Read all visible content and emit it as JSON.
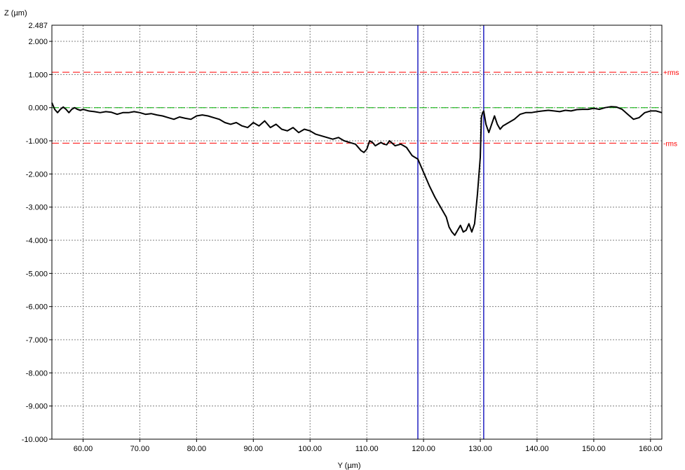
{
  "chart_data": {
    "type": "line",
    "xlabel": "Y (µm)",
    "ylabel": "Z (µm)",
    "xlim": [
      54.5,
      162
    ],
    "ylim": [
      -10.0,
      2.487
    ],
    "y_top_label": "2.487",
    "x_ticks": [
      60,
      70,
      80,
      90,
      100,
      110,
      120,
      130,
      140,
      150,
      160
    ],
    "x_tick_labels": [
      "60.00",
      "70.00",
      "80.00",
      "90.00",
      "100.00",
      "110.00",
      "120.00",
      "130.00",
      "140.00",
      "150.00",
      "160.00"
    ],
    "y_ticks": [
      2,
      1,
      0,
      -1,
      -2,
      -3,
      -4,
      -5,
      -6,
      -7,
      -8,
      -9,
      -10
    ],
    "y_tick_labels": [
      "2.000",
      "1.000",
      "0.000",
      "-1.000",
      "-2.000",
      "-3.000",
      "-4.000",
      "-5.000",
      "-6.000",
      "-7.000",
      "-8.000",
      "-9.000",
      "-10.000"
    ],
    "grid": true,
    "reference_lines": [
      {
        "label": "+rms",
        "y": 1.07,
        "color": "#ff0000"
      },
      {
        "label": "",
        "y": 0.0,
        "color": "#00b000"
      },
      {
        "label": "-rms",
        "y": -1.07,
        "color": "#ff0000"
      }
    ],
    "cursors": [
      {
        "x": 119.0,
        "color": "#2020c0"
      },
      {
        "x": 130.6,
        "color": "#2020c0"
      }
    ],
    "series": [
      {
        "color": "#000000",
        "x": [
          54.5,
          55.0,
          55.5,
          56.0,
          56.5,
          57.0,
          57.5,
          58.0,
          58.5,
          59.0,
          59.5,
          60.0,
          61.0,
          62.0,
          63.0,
          64.0,
          65.0,
          66.0,
          67.0,
          68.0,
          69.0,
          70.0,
          71.0,
          72.0,
          73.0,
          74.0,
          75.0,
          76.0,
          77.0,
          78.0,
          79.0,
          80.0,
          81.0,
          82.0,
          83.0,
          84.0,
          85.0,
          86.0,
          87.0,
          88.0,
          89.0,
          90.0,
          91.0,
          92.0,
          93.0,
          94.0,
          95.0,
          96.0,
          97.0,
          98.0,
          99.0,
          100.0,
          101.0,
          102.0,
          103.0,
          104.0,
          105.0,
          106.0,
          107.0,
          108.0,
          109.0,
          109.5,
          110.0,
          110.5,
          111.0,
          111.5,
          112.0,
          112.5,
          113.0,
          113.5,
          114.0,
          115.0,
          116.0,
          117.0,
          118.0,
          118.5,
          119.0,
          119.5,
          120.0,
          121.0,
          122.0,
          123.0,
          124.0,
          124.5,
          125.0,
          125.5,
          126.0,
          126.5,
          127.0,
          127.5,
          128.0,
          128.5,
          129.0,
          129.5,
          130.0,
          130.2,
          130.4,
          130.6,
          131.0,
          131.5,
          132.0,
          132.5,
          133.0,
          133.5,
          134.0,
          135.0,
          136.0,
          137.0,
          138.0,
          139.0,
          140.0,
          141.0,
          142.0,
          143.0,
          144.0,
          145.0,
          146.0,
          147.0,
          148.0,
          149.0,
          150.0,
          151.0,
          152.0,
          153.0,
          154.0,
          155.0,
          156.0,
          157.0,
          158.0,
          159.0,
          160.0,
          161.0,
          162.0
        ],
        "y": [
          0.15,
          -0.05,
          -0.15,
          -0.05,
          0.02,
          -0.05,
          -0.15,
          -0.05,
          0.0,
          -0.05,
          -0.08,
          -0.05,
          -0.1,
          -0.12,
          -0.15,
          -0.12,
          -0.14,
          -0.2,
          -0.15,
          -0.15,
          -0.12,
          -0.15,
          -0.2,
          -0.18,
          -0.22,
          -0.25,
          -0.3,
          -0.35,
          -0.28,
          -0.32,
          -0.35,
          -0.25,
          -0.22,
          -0.25,
          -0.3,
          -0.35,
          -0.45,
          -0.5,
          -0.45,
          -0.55,
          -0.6,
          -0.45,
          -0.55,
          -0.4,
          -0.6,
          -0.5,
          -0.65,
          -0.7,
          -0.6,
          -0.75,
          -0.65,
          -0.7,
          -0.8,
          -0.85,
          -0.9,
          -0.95,
          -0.9,
          -1.0,
          -1.05,
          -1.1,
          -1.3,
          -1.35,
          -1.25,
          -1.0,
          -1.05,
          -1.15,
          -1.1,
          -1.05,
          -1.1,
          -1.12,
          -1.0,
          -1.15,
          -1.1,
          -1.2,
          -1.45,
          -1.5,
          -1.55,
          -1.75,
          -1.95,
          -2.35,
          -2.7,
          -3.0,
          -3.3,
          -3.6,
          -3.75,
          -3.85,
          -3.7,
          -3.55,
          -3.75,
          -3.7,
          -3.5,
          -3.75,
          -3.5,
          -2.6,
          -1.5,
          -0.3,
          -0.15,
          -0.1,
          -0.5,
          -0.75,
          -0.5,
          -0.25,
          -0.5,
          -0.65,
          -0.55,
          -0.45,
          -0.35,
          -0.2,
          -0.15,
          -0.15,
          -0.12,
          -0.1,
          -0.08,
          -0.1,
          -0.12,
          -0.08,
          -0.1,
          -0.06,
          -0.05,
          -0.05,
          -0.02,
          -0.05,
          0.0,
          0.03,
          0.02,
          -0.05,
          -0.2,
          -0.35,
          -0.3,
          -0.15,
          -0.1,
          -0.1,
          -0.15
        ]
      }
    ]
  }
}
